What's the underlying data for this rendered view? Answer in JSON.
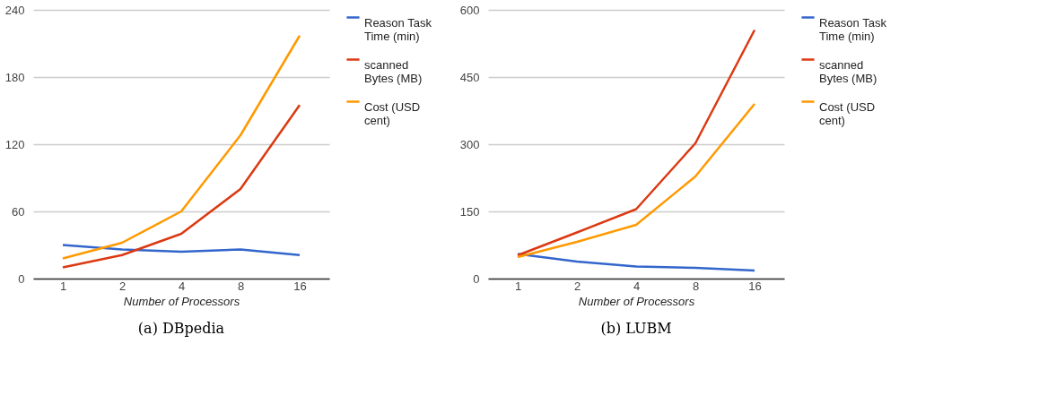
{
  "chart_data": [
    {
      "type": "line",
      "title": "(a) DBpedia",
      "xlabel": "Number of Processors",
      "categories": [
        "1",
        "2",
        "4",
        "8",
        "16"
      ],
      "series": [
        {
          "name": "Reason Task Time (min)",
          "color": "#3366cc",
          "values": [
            30,
            26,
            24,
            26,
            21
          ]
        },
        {
          "name": "scanned Bytes (MB)",
          "color": "#dc3912",
          "values": [
            10,
            21,
            40,
            80,
            155
          ]
        },
        {
          "name": "Cost (USD cent)",
          "color": "#ff9900",
          "values": [
            18,
            32,
            60,
            128,
            217
          ]
        }
      ],
      "ylim": [
        0,
        240
      ],
      "yticks": [
        0,
        60,
        120,
        180,
        240
      ],
      "grid": "y",
      "legend": "top right"
    },
    {
      "type": "line",
      "title": "(b) LUBM",
      "xlabel": "Number of Processors",
      "categories": [
        "1",
        "2",
        "4",
        "8",
        "16"
      ],
      "series": [
        {
          "name": "Reason Task Time (min)",
          "color": "#3366cc",
          "values": [
            55,
            38,
            27,
            24,
            18
          ]
        },
        {
          "name": "scanned Bytes (MB)",
          "color": "#dc3912",
          "values": [
            52,
            103,
            155,
            302,
            555
          ]
        },
        {
          "name": "Cost (USD cent)",
          "color": "#ff9900",
          "values": [
            48,
            82,
            120,
            228,
            390
          ]
        }
      ],
      "ylim": [
        0,
        600
      ],
      "yticks": [
        0,
        150,
        300,
        450,
        600
      ],
      "grid": "y",
      "legend": "top right"
    }
  ]
}
